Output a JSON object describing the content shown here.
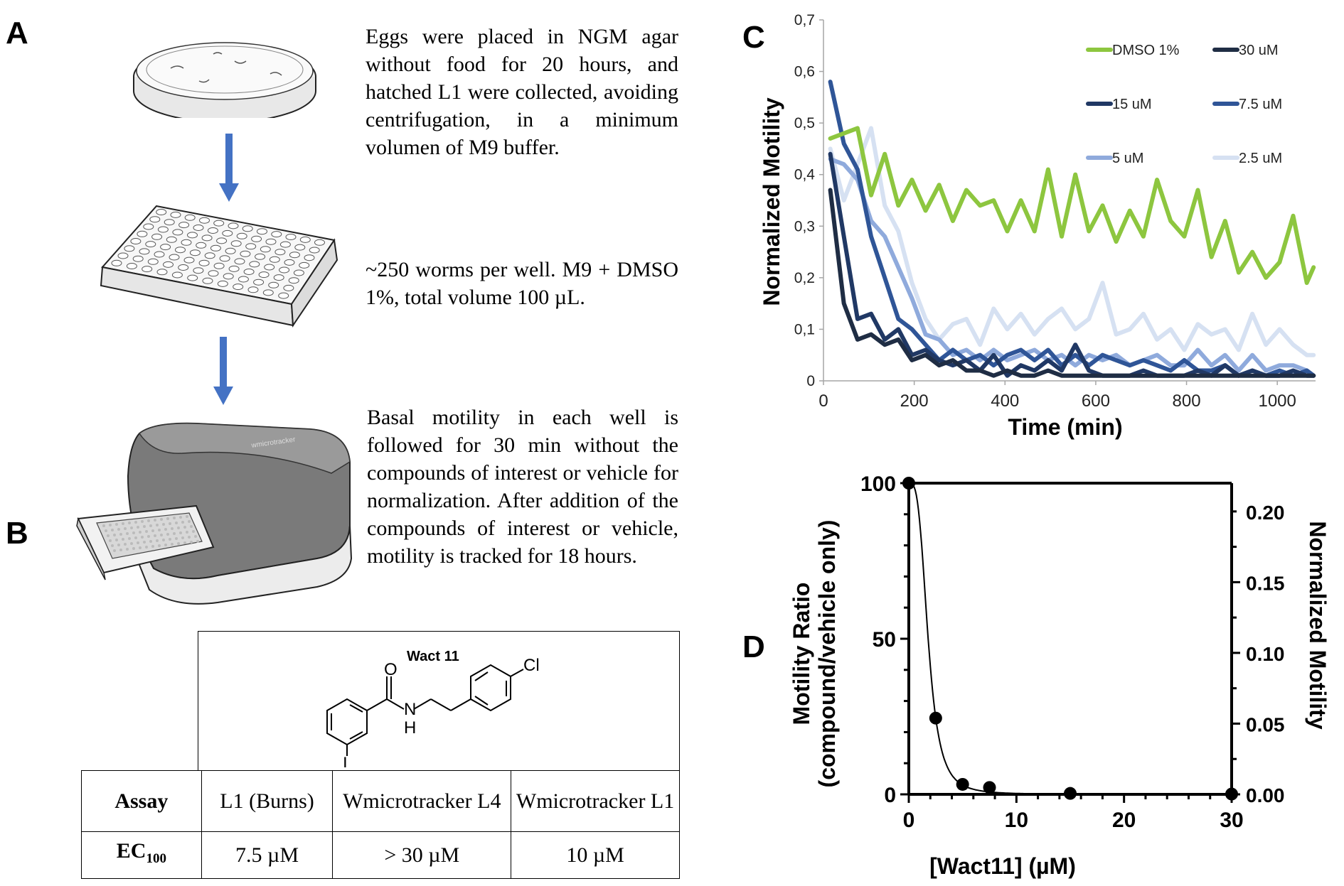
{
  "panels": {
    "a": "A",
    "b": "B",
    "c": "C",
    "d": "D"
  },
  "panel_a": {
    "step1_text": "Eggs were placed in NGM agar without food for 20 hours, and hatched L1 were collected, avoiding centrifugation, in a minimum volumen of M9 buffer.",
    "step2_text": "~250 worms per well. M9 + DMSO 1%, total volume 100 µL.",
    "step3_text": "Basal motility in each well is followed for 30 min without the compounds of interest or vehicle for normalization. After addition of the compounds of interest or vehicle, motility is tracked for 18 hours.",
    "device_label": "wmicrotracker",
    "icons": [
      "petri-dish",
      "arrow-down",
      "well-plate-96",
      "arrow-down",
      "wmicrotracker-device"
    ]
  },
  "panel_b": {
    "compound_name": "Wact 11",
    "atoms": {
      "o": "O",
      "n": "N",
      "h": "H",
      "cl": "Cl",
      "i": "I"
    },
    "table": {
      "header": [
        "Assay",
        "L1 (Burns)",
        "Wmicrotracker L4",
        "Wmicrotracker L1"
      ],
      "row_label": "EC",
      "row_label_sub": "100",
      "row_values": [
        "7.5 µM",
        "> 30 µM",
        "10 µM"
      ]
    }
  },
  "chart_data": [
    {
      "type": "line",
      "panel": "C",
      "title": "",
      "xlabel": "Time (min)",
      "ylabel": "Normalized Motility",
      "xlim": [
        0,
        1100
      ],
      "ylim": [
        0,
        0.7
      ],
      "x_ticks": [
        "0",
        "200",
        "400",
        "600",
        "800",
        "1000"
      ],
      "y_ticks": [
        "0",
        "0,1",
        "0,2",
        "0,3",
        "0,4",
        "0,5",
        "0,6",
        "0,7"
      ],
      "grid": false,
      "legend_position": "top-right",
      "x": [
        15,
        45,
        75,
        105,
        135,
        165,
        195,
        225,
        255,
        285,
        315,
        345,
        375,
        405,
        435,
        465,
        495,
        525,
        555,
        585,
        615,
        645,
        675,
        705,
        735,
        765,
        795,
        825,
        855,
        885,
        915,
        945,
        975,
        1005,
        1035,
        1065,
        1080
      ],
      "series": [
        {
          "name": "DMSO 1%",
          "color": "#8dc63f",
          "values": [
            0.47,
            0.48,
            0.49,
            0.36,
            0.44,
            0.34,
            0.39,
            0.33,
            0.38,
            0.31,
            0.37,
            0.34,
            0.35,
            0.29,
            0.35,
            0.29,
            0.41,
            0.28,
            0.4,
            0.29,
            0.34,
            0.27,
            0.33,
            0.28,
            0.39,
            0.31,
            0.28,
            0.37,
            0.24,
            0.31,
            0.21,
            0.25,
            0.2,
            0.23,
            0.32,
            0.19,
            0.22
          ]
        },
        {
          "name": "30 uM",
          "color": "#1f2d44",
          "values": [
            0.37,
            0.15,
            0.08,
            0.09,
            0.07,
            0.08,
            0.04,
            0.05,
            0.03,
            0.04,
            0.02,
            0.02,
            0.01,
            0.02,
            0.01,
            0.01,
            0.02,
            0.01,
            0.01,
            0.01,
            0.01,
            0.01,
            0.01,
            0.01,
            0.01,
            0.01,
            0.01,
            0.01,
            0.01,
            0.01,
            0.01,
            0.01,
            0.01,
            0.01,
            0.01,
            0.01,
            0.01
          ]
        },
        {
          "name": "15 uM",
          "color": "#203864",
          "values": [
            0.44,
            0.28,
            0.12,
            0.13,
            0.08,
            0.1,
            0.05,
            0.06,
            0.04,
            0.03,
            0.04,
            0.02,
            0.05,
            0.01,
            0.03,
            0.02,
            0.04,
            0.02,
            0.07,
            0.02,
            0.01,
            0.01,
            0.01,
            0.02,
            0.01,
            0.01,
            0.01,
            0.02,
            0.01,
            0.03,
            0.01,
            0.02,
            0.01,
            0.01,
            0.02,
            0.01,
            0.01
          ]
        },
        {
          "name": "7.5 uM",
          "color": "#2f5597",
          "values": [
            0.58,
            0.46,
            0.41,
            0.28,
            0.2,
            0.12,
            0.1,
            0.07,
            0.04,
            0.06,
            0.04,
            0.05,
            0.03,
            0.05,
            0.06,
            0.04,
            0.06,
            0.03,
            0.05,
            0.03,
            0.05,
            0.04,
            0.03,
            0.04,
            0.03,
            0.02,
            0.04,
            0.02,
            0.02,
            0.03,
            0.01,
            0.02,
            0.01,
            0.02,
            0.01,
            0.02,
            0.01
          ]
        },
        {
          "name": "5 uM",
          "color": "#8faadc",
          "values": [
            0.43,
            0.42,
            0.39,
            0.31,
            0.28,
            0.22,
            0.16,
            0.09,
            0.08,
            0.05,
            0.06,
            0.04,
            0.06,
            0.04,
            0.05,
            0.06,
            0.04,
            0.05,
            0.03,
            0.05,
            0.04,
            0.05,
            0.03,
            0.04,
            0.05,
            0.03,
            0.03,
            0.06,
            0.03,
            0.05,
            0.02,
            0.05,
            0.02,
            0.03,
            0.03,
            0.02,
            0.01
          ]
        },
        {
          "name": "2.5 uM",
          "color": "#d6e1f2",
          "values": [
            0.45,
            0.35,
            0.42,
            0.49,
            0.34,
            0.29,
            0.19,
            0.12,
            0.08,
            0.11,
            0.12,
            0.07,
            0.14,
            0.1,
            0.13,
            0.09,
            0.12,
            0.14,
            0.1,
            0.12,
            0.19,
            0.09,
            0.1,
            0.13,
            0.08,
            0.1,
            0.06,
            0.11,
            0.09,
            0.1,
            0.06,
            0.13,
            0.07,
            0.1,
            0.07,
            0.05,
            0.05
          ]
        }
      ]
    },
    {
      "type": "scatter",
      "panel": "D",
      "title": "",
      "xlabel": "[Wact11] (µM)",
      "ylabel": "Motility Ratio",
      "ylabel2": "(compound/vehicle only)",
      "ylabel_right": "Normalized Motility",
      "xlim": [
        0,
        30
      ],
      "ylim": [
        0,
        100
      ],
      "ylim_right": [
        0,
        0.22
      ],
      "x_ticks": [
        "0",
        "10",
        "20",
        "30"
      ],
      "y_ticks": [
        "0",
        "50",
        "100"
      ],
      "y_ticks_right": [
        "0.00",
        "0.05",
        "0.10",
        "0.15",
        "0.20"
      ],
      "grid": false,
      "points": [
        {
          "x": 0,
          "y": 100
        },
        {
          "x": 2.5,
          "y": 24.5
        },
        {
          "x": 5,
          "y": 3.2
        },
        {
          "x": 7.5,
          "y": 2.2
        },
        {
          "x": 15,
          "y": 0.3
        },
        {
          "x": 30,
          "y": 0.1
        }
      ],
      "fit_curve": "sigmoidal"
    }
  ]
}
